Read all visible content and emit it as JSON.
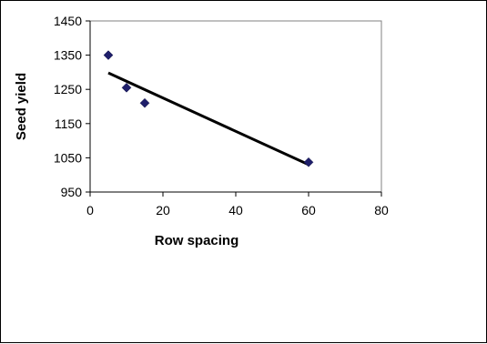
{
  "chart_data": {
    "type": "scatter",
    "title": "",
    "xlabel": "Row spacing",
    "ylabel": "Seed yield",
    "xlim": [
      0,
      80
    ],
    "ylim": [
      950,
      1450
    ],
    "xticks": [
      0,
      20,
      40,
      60,
      80
    ],
    "yticks": [
      950,
      1050,
      1150,
      1250,
      1350,
      1450
    ],
    "grid": false,
    "legend": "none",
    "series": [
      {
        "points": [
          {
            "x": 5,
            "y": 1350
          },
          {
            "x": 10,
            "y": 1255
          },
          {
            "x": 15,
            "y": 1210
          },
          {
            "x": 60,
            "y": 1037
          }
        ],
        "marker": "diamond",
        "color": "#1f1f6b"
      }
    ],
    "trendline": {
      "type": "linear",
      "from": {
        "x": 5,
        "y": 1298
      },
      "to": {
        "x": 60,
        "y": 1030
      },
      "color": "#000000"
    }
  }
}
